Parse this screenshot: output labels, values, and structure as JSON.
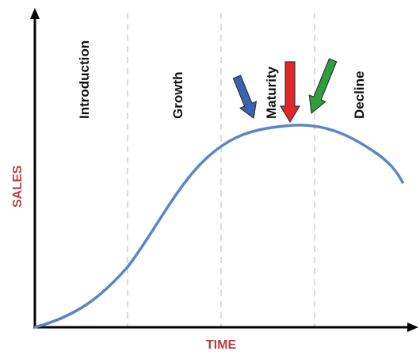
{
  "diagram": {
    "x_axis_label": "TIME",
    "y_axis_label": "SALES",
    "axis_label_color": "#b5403f",
    "curve_color": "#5b86c0",
    "divider_color": "#c8c8c8",
    "stages": [
      "Introduction",
      "Growth",
      "Maturity",
      "Decline"
    ],
    "arrows": [
      {
        "name": "blue-arrow",
        "color": "#3a62b0",
        "direction": "down-right"
      },
      {
        "name": "red-arrow",
        "color": "#e0282a",
        "direction": "down"
      },
      {
        "name": "green-arrow",
        "color": "#2e9e3e",
        "direction": "down-left"
      }
    ]
  }
}
